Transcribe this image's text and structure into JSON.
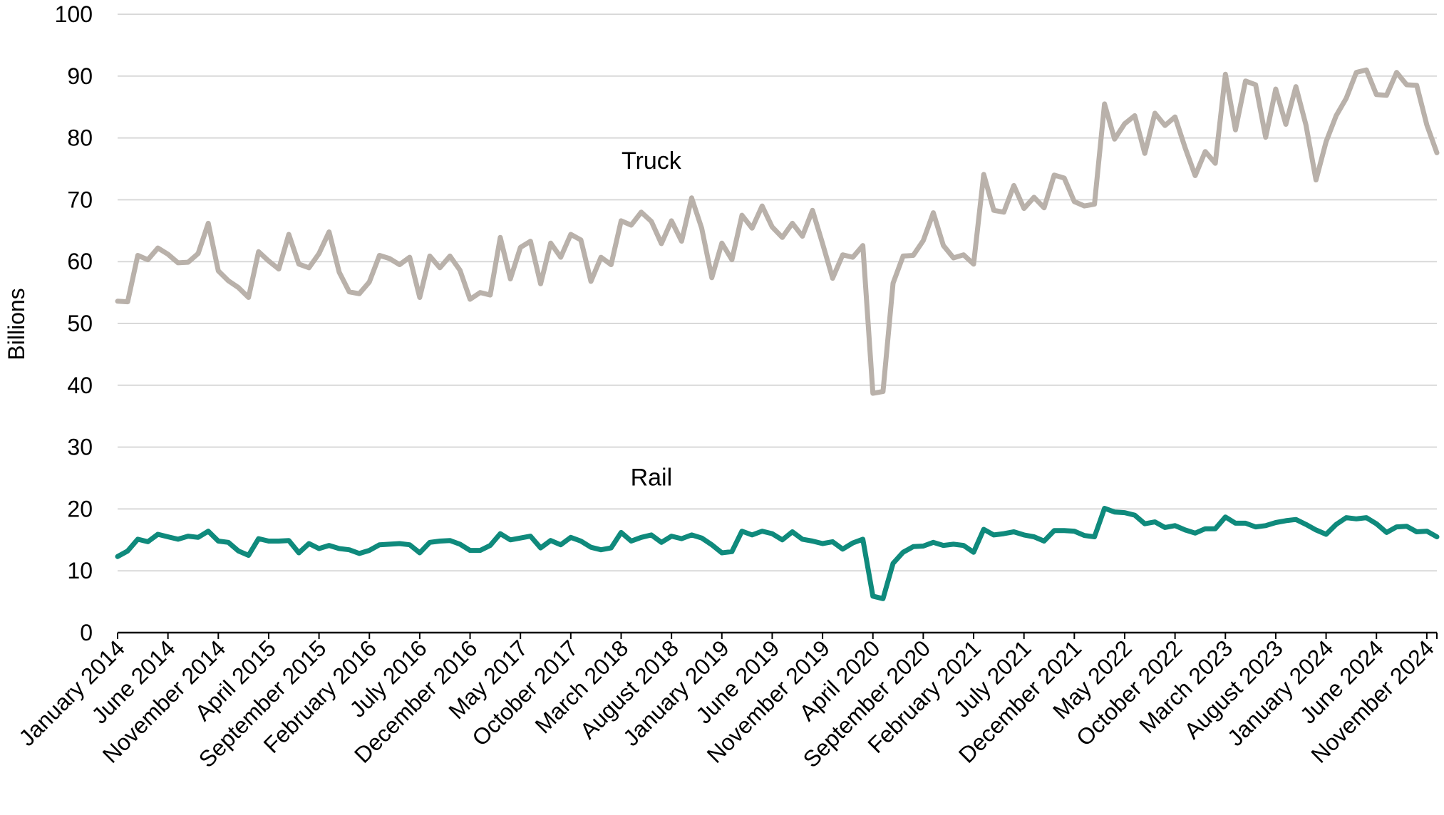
{
  "chart_data": {
    "type": "line",
    "title": "",
    "xlabel": "",
    "ylabel": "Billions",
    "ylim": [
      0,
      100
    ],
    "yticks": [
      0,
      10,
      20,
      30,
      40,
      50,
      60,
      70,
      80,
      90,
      100
    ],
    "grid": "horizontal",
    "legend": "none (direct labels on lines)",
    "x": [
      "2014-01",
      "2014-02",
      "2014-03",
      "2014-04",
      "2014-05",
      "2014-06",
      "2014-07",
      "2014-08",
      "2014-09",
      "2014-10",
      "2014-11",
      "2014-12",
      "2015-01",
      "2015-02",
      "2015-03",
      "2015-04",
      "2015-05",
      "2015-06",
      "2015-07",
      "2015-08",
      "2015-09",
      "2015-10",
      "2015-11",
      "2015-12",
      "2016-01",
      "2016-02",
      "2016-03",
      "2016-04",
      "2016-05",
      "2016-06",
      "2016-07",
      "2016-08",
      "2016-09",
      "2016-10",
      "2016-11",
      "2016-12",
      "2017-01",
      "2017-02",
      "2017-03",
      "2017-04",
      "2017-05",
      "2017-06",
      "2017-07",
      "2017-08",
      "2017-09",
      "2017-10",
      "2017-11",
      "2017-12",
      "2018-01",
      "2018-02",
      "2018-03",
      "2018-04",
      "2018-05",
      "2018-06",
      "2018-07",
      "2018-08",
      "2018-09",
      "2018-10",
      "2018-11",
      "2018-12",
      "2019-01",
      "2019-02",
      "2019-03",
      "2019-04",
      "2019-05",
      "2019-06",
      "2019-07",
      "2019-08",
      "2019-09",
      "2019-10",
      "2019-11",
      "2019-12",
      "2020-01",
      "2020-02",
      "2020-03",
      "2020-04",
      "2020-05",
      "2020-06",
      "2020-07",
      "2020-08",
      "2020-09",
      "2020-10",
      "2020-11",
      "2020-12",
      "2021-01",
      "2021-02",
      "2021-03",
      "2021-04",
      "2021-05",
      "2021-06",
      "2021-07",
      "2021-08",
      "2021-09",
      "2021-10",
      "2021-11",
      "2021-12",
      "2022-01",
      "2022-02",
      "2022-03",
      "2022-04",
      "2022-05",
      "2022-06",
      "2022-07",
      "2022-08",
      "2022-09",
      "2022-10",
      "2022-11",
      "2022-12",
      "2023-01",
      "2023-02",
      "2023-03",
      "2023-04",
      "2023-05",
      "2023-06",
      "2023-07",
      "2023-08",
      "2023-09",
      "2023-10",
      "2023-11",
      "2023-12",
      "2024-01",
      "2024-02",
      "2024-03",
      "2024-04",
      "2024-05",
      "2024-06",
      "2024-07",
      "2024-08",
      "2024-09",
      "2024-10",
      "2024-11",
      "2024-12"
    ],
    "tick_labels": [
      "January 2014",
      "June 2014",
      "November 2014",
      "April 2015",
      "September 2015",
      "February 2016",
      "July 2016",
      "December 2016",
      "May 2017",
      "October 2017",
      "March 2018",
      "August 2018",
      "January 2019",
      "June 2019",
      "November 2019",
      "April 2020",
      "September 2020",
      "February 2021",
      "July 2021",
      "December 2021",
      "May 2022",
      "October 2022",
      "March 2023",
      "August 2023",
      "January 2024",
      "June 2024",
      "November 2024"
    ],
    "series": [
      {
        "name": "Truck",
        "color": "#b9b1aa",
        "values": [
          53.6,
          53.5,
          61,
          60.3,
          62.2,
          61.2,
          59.8,
          59.9,
          61.3,
          66.2,
          58.5,
          56.9,
          55.8,
          54.2,
          61.6,
          60.1,
          58.8,
          64.4,
          59.6,
          59,
          61.3,
          64.8,
          58.3,
          55.1,
          54.8,
          56.7,
          61,
          60.5,
          59.5,
          60.7,
          54.2,
          60.9,
          59,
          60.9,
          58.6,
          53.9,
          55,
          54.6,
          63.9,
          57.2,
          62.3,
          63.3,
          56.4,
          63,
          60.7,
          64.4,
          63.5,
          56.8,
          60.7,
          59.5,
          66.6,
          65.9,
          68,
          66.5,
          62.9,
          66.6,
          63.3,
          70.3,
          65.4,
          57.4,
          63,
          60.3,
          67.5,
          65.4,
          69,
          65.6,
          63.9,
          66.2,
          64.1,
          68.3,
          62.9,
          57.3,
          61.1,
          60.7,
          62.6,
          38.7,
          39,
          56.5,
          60.9,
          61,
          63.4,
          67.9,
          62.6,
          60.6,
          61.1,
          59.6,
          74.1,
          68.3,
          68,
          72.3,
          68.6,
          70.4,
          68.7,
          74,
          73.5,
          69.7,
          69,
          69.3,
          85.5,
          79.8,
          82.3,
          83.6,
          77.5,
          84,
          82,
          83.4,
          78.4,
          73.9,
          77.8,
          75.9,
          90.3,
          81.3,
          89.2,
          88.6,
          80.1,
          87.9,
          82.2,
          88.3,
          82.1,
          73.2,
          79.4,
          83.6,
          86.4,
          90.6,
          91,
          87,
          86.9,
          90.6,
          88.6,
          88.5,
          82.1,
          77.6
        ]
      },
      {
        "name": "Rail",
        "color": "#0f8a7c",
        "values": [
          12.3,
          13.2,
          15.1,
          14.7,
          15.9,
          15.5,
          15.1,
          15.6,
          15.4,
          16.4,
          14.8,
          14.6,
          13.2,
          12.5,
          15.2,
          14.8,
          14.8,
          14.9,
          12.9,
          14.4,
          13.6,
          14.1,
          13.6,
          13.4,
          12.8,
          13.3,
          14.2,
          14.3,
          14.4,
          14.2,
          12.9,
          14.6,
          14.8,
          14.9,
          14.3,
          13.3,
          13.3,
          14.1,
          16,
          15,
          15.3,
          15.6,
          13.7,
          14.9,
          14.2,
          15.4,
          14.8,
          13.8,
          13.4,
          13.7,
          16.2,
          14.8,
          15.4,
          15.8,
          14.6,
          15.6,
          15.2,
          15.8,
          15.3,
          14.2,
          12.9,
          13.1,
          16.4,
          15.8,
          16.4,
          16,
          15,
          16.3,
          15.1,
          14.8,
          14.4,
          14.7,
          13.5,
          14.5,
          15.1,
          5.9,
          5.5,
          11.2,
          13,
          13.9,
          14,
          14.6,
          14.1,
          14.3,
          14.1,
          13,
          16.7,
          15.8,
          16,
          16.3,
          15.8,
          15.5,
          14.8,
          16.5,
          16.5,
          16.4,
          15.7,
          15.5,
          20.1,
          19.5,
          19.4,
          19,
          17.6,
          17.9,
          17,
          17.3,
          16.6,
          16.1,
          16.8,
          16.8,
          18.7,
          17.7,
          17.7,
          17.1,
          17.3,
          17.8,
          18.1,
          18.3,
          17.5,
          16.6,
          15.9,
          17.5,
          18.6,
          18.4,
          18.6,
          17.6,
          16.2,
          17.1,
          17.2,
          16.3,
          16.4,
          15.5
        ]
      }
    ],
    "annotations": [
      {
        "text": "Truck",
        "x": "2018-06",
        "y": 75
      },
      {
        "text": "Rail",
        "x": "2018-06",
        "y": 23.8
      }
    ]
  }
}
